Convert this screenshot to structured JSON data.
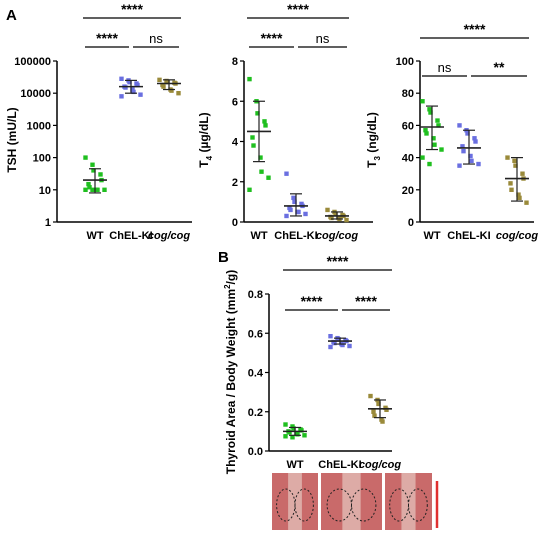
{
  "panels": {
    "A": "A",
    "B": "B"
  },
  "colors": {
    "wt": "#1fbf1f",
    "chel": "#6a6fe0",
    "cog": "#9a8a3a",
    "axis": "#000000",
    "tissue_bg": "#c96a6a",
    "scale_bar": "#e03030"
  },
  "chart_data": [
    {
      "id": "tsh",
      "type": "scatter",
      "ylabel": "TSH (mU/L)",
      "yscale": "log",
      "ylim": [
        1,
        100000
      ],
      "yticks": [
        "1",
        "10",
        "100",
        "1000",
        "10000",
        "100000"
      ],
      "yticks_values": [
        1,
        10,
        100,
        1000,
        10000,
        100000
      ],
      "categories": [
        "WT",
        "ChEL-KI",
        "cog/cog"
      ],
      "series": [
        {
          "name": "WT",
          "values": [
            100,
            60,
            40,
            30,
            20,
            15,
            12,
            10,
            10,
            10,
            10,
            10
          ],
          "mean": 20,
          "sd_low": 8,
          "sd_high": 45
        },
        {
          "name": "ChEL-KI",
          "values": [
            28000,
            25000,
            22000,
            20000,
            18000,
            16000,
            15000,
            13000,
            11000,
            9000,
            8000
          ],
          "mean": 16000,
          "sd_low": 10000,
          "sd_high": 25000
        },
        {
          "name": "cog/cog",
          "values": [
            26000,
            24000,
            22000,
            21000,
            20000,
            18000,
            16000,
            13000,
            12000,
            10000
          ],
          "mean": 20000,
          "sd_low": 13000,
          "sd_high": 26000
        }
      ],
      "significance": [
        {
          "from": 0,
          "to": 2,
          "label": "****"
        },
        {
          "from": 0,
          "to": 1,
          "label": "****"
        },
        {
          "from": 1,
          "to": 2,
          "label": "ns"
        }
      ]
    },
    {
      "id": "t4",
      "type": "scatter",
      "ylabel": "T4 (µg/dL)",
      "ylabel_parts": [
        "T",
        "4",
        " (µg/dL)"
      ],
      "ylim": [
        0,
        8
      ],
      "yticks": [
        "0",
        "2",
        "4",
        "6",
        "8"
      ],
      "yticks_values": [
        0,
        2,
        4,
        6,
        8
      ],
      "categories": [
        "WT",
        "ChEL-KI",
        "cog/cog"
      ],
      "series": [
        {
          "name": "WT",
          "values": [
            7.1,
            6.0,
            5.4,
            5.0,
            4.8,
            4.2,
            3.8,
            3.2,
            2.5,
            2.2,
            1.6
          ],
          "mean": 4.5,
          "sd_low": 3.0,
          "sd_high": 6.0
        },
        {
          "name": "ChEL-KI",
          "values": [
            2.4,
            1.2,
            1.0,
            0.9,
            0.8,
            0.7,
            0.6,
            0.5,
            0.5,
            0.4,
            0.3
          ],
          "mean": 0.8,
          "sd_low": 0.3,
          "sd_high": 1.4
        },
        {
          "name": "cog/cog",
          "values": [
            0.6,
            0.5,
            0.4,
            0.35,
            0.3,
            0.25,
            0.2,
            0.2,
            0.15,
            0.1
          ],
          "mean": 0.3,
          "sd_low": 0.15,
          "sd_high": 0.5
        }
      ],
      "significance": [
        {
          "from": 0,
          "to": 2,
          "label": "****"
        },
        {
          "from": 0,
          "to": 1,
          "label": "****"
        },
        {
          "from": 1,
          "to": 2,
          "label": "ns"
        }
      ]
    },
    {
      "id": "t3",
      "type": "scatter",
      "ylabel": "T3 (ng/dL)",
      "ylabel_parts": [
        "T",
        "3",
        " (ng/dL)"
      ],
      "ylim": [
        0,
        100
      ],
      "yticks": [
        "0",
        "20",
        "40",
        "60",
        "80",
        "100"
      ],
      "yticks_values": [
        0,
        20,
        40,
        60,
        80,
        100
      ],
      "categories": [
        "WT",
        "ChEL-KI",
        "cog/cog"
      ],
      "series": [
        {
          "name": "WT",
          "values": [
            75,
            70,
            68,
            63,
            60,
            57,
            55,
            52,
            48,
            45,
            40,
            36
          ],
          "mean": 59,
          "sd_low": 45,
          "sd_high": 72
        },
        {
          "name": "ChEL-KI",
          "values": [
            60,
            57,
            55,
            52,
            50,
            47,
            44,
            41,
            38,
            36,
            35
          ],
          "mean": 46,
          "sd_low": 36,
          "sd_high": 57
        },
        {
          "name": "cog/cog",
          "values": [
            40,
            38,
            35,
            30,
            27,
            24,
            20,
            17,
            15,
            12
          ],
          "mean": 27,
          "sd_low": 13,
          "sd_high": 40
        }
      ],
      "significance": [
        {
          "from": 0,
          "to": 2,
          "label": "****"
        },
        {
          "from": 0,
          "to": 1,
          "label": "ns"
        },
        {
          "from": 1,
          "to": 2,
          "label": "**"
        }
      ]
    },
    {
      "id": "thyroid",
      "type": "scatter",
      "ylabel": "Thyroid Area / Body Weight (mm²/g)",
      "ylabel_parts": [
        "Thyroid Area / Body Weight (mm",
        "2",
        "/g)"
      ],
      "ylim": [
        0,
        0.8
      ],
      "yticks": [
        "0.0",
        "0.2",
        "0.4",
        "0.6",
        "0.8"
      ],
      "yticks_values": [
        0,
        0.2,
        0.4,
        0.6,
        0.8
      ],
      "categories": [
        "WT",
        "ChEL-KI",
        "cog/cog"
      ],
      "series": [
        {
          "name": "WT",
          "values": [
            0.135,
            0.125,
            0.115,
            0.11,
            0.105,
            0.1,
            0.095,
            0.09,
            0.085,
            0.08,
            0.075,
            0.07
          ],
          "mean": 0.1,
          "sd_low": 0.08,
          "sd_high": 0.12
        },
        {
          "name": "ChEL-KI",
          "values": [
            0.585,
            0.575,
            0.57,
            0.565,
            0.56,
            0.555,
            0.55,
            0.545,
            0.54,
            0.535,
            0.53
          ],
          "mean": 0.56,
          "sd_low": 0.545,
          "sd_high": 0.575
        },
        {
          "name": "cog/cog",
          "values": [
            0.28,
            0.26,
            0.24,
            0.22,
            0.21,
            0.2,
            0.18,
            0.16,
            0.15
          ],
          "mean": 0.215,
          "sd_low": 0.17,
          "sd_high": 0.26
        }
      ],
      "significance": [
        {
          "from": 0,
          "to": 2,
          "label": "****"
        },
        {
          "from": 0,
          "to": 1,
          "label": "****"
        },
        {
          "from": 1,
          "to": 2,
          "label": "****"
        }
      ]
    }
  ]
}
